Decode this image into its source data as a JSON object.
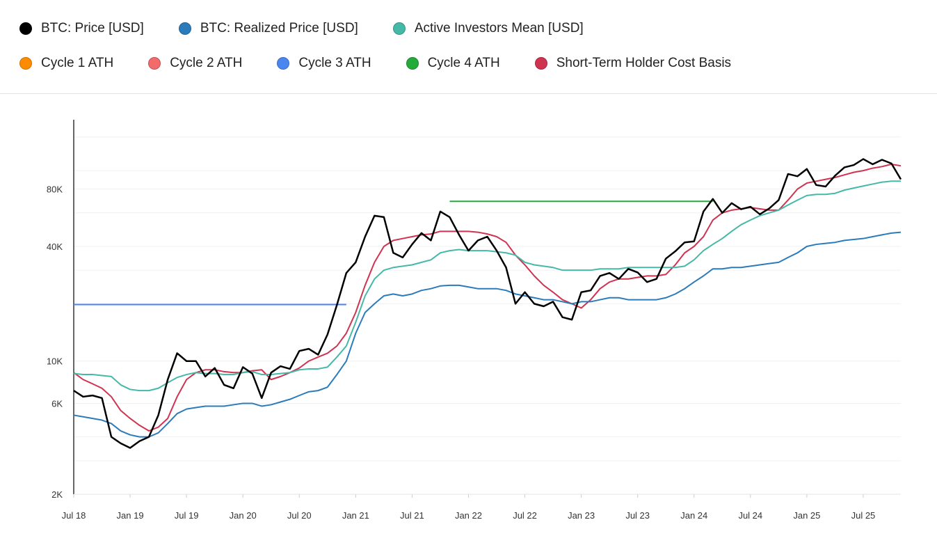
{
  "legend": [
    {
      "label": "BTC: Price [USD]",
      "color": "#000000"
    },
    {
      "label": "BTC: Realized Price [USD]",
      "color": "#2b7bba"
    },
    {
      "label": "Active Investors Mean [USD]",
      "color": "#45b8a8"
    },
    {
      "label": "Cycle 1 ATH",
      "color": "#ff8c00"
    },
    {
      "label": "Cycle 2 ATH",
      "color": "#f26a6a"
    },
    {
      "label": "Cycle 3 ATH",
      "color": "#4a86f0"
    },
    {
      "label": "Cycle 4 ATH",
      "color": "#22aa3a"
    },
    {
      "label": "Short-Term Holder Cost Basis",
      "color": "#d0334f"
    }
  ],
  "chart_data": {
    "type": "line",
    "yscale": "log",
    "ylim": [
      2000,
      185000
    ],
    "xlim": [
      "2018-07",
      "2025-11"
    ],
    "yticks": [
      {
        "v": 2000,
        "label": "2K"
      },
      {
        "v": 6000,
        "label": "6K"
      },
      {
        "v": 10000,
        "label": "10K"
      },
      {
        "v": 40000,
        "label": "40K"
      },
      {
        "v": 80000,
        "label": "80K"
      }
    ],
    "xticks": [
      {
        "v": "2018-07",
        "label": "Jul 18"
      },
      {
        "v": "2019-01",
        "label": "Jan 19"
      },
      {
        "v": "2019-07",
        "label": "Jul 19"
      },
      {
        "v": "2020-01",
        "label": "Jan 20"
      },
      {
        "v": "2020-07",
        "label": "Jul 20"
      },
      {
        "v": "2021-01",
        "label": "Jan 21"
      },
      {
        "v": "2021-07",
        "label": "Jul 21"
      },
      {
        "v": "2022-01",
        "label": "Jan 22"
      },
      {
        "v": "2022-07",
        "label": "Jul 22"
      },
      {
        "v": "2023-01",
        "label": "Jan 23"
      },
      {
        "v": "2023-07",
        "label": "Jul 23"
      },
      {
        "v": "2024-01",
        "label": "Jan 24"
      },
      {
        "v": "2024-07",
        "label": "Jul 24"
      },
      {
        "v": "2025-01",
        "label": "Jan 25"
      },
      {
        "v": "2025-07",
        "label": "Jul 25"
      }
    ],
    "grid": true,
    "start": "2018-07",
    "series": [
      {
        "name": "BTC: Price [USD]",
        "color": "#000000",
        "values": [
          7000,
          6500,
          6600,
          6400,
          4000,
          3700,
          3500,
          3800,
          4000,
          5200,
          8000,
          11000,
          10000,
          10000,
          8300,
          9200,
          7500,
          7200,
          9300,
          8600,
          6400,
          8700,
          9400,
          9100,
          11300,
          11600,
          10800,
          13800,
          19700,
          29000,
          33000,
          45000,
          58000,
          57000,
          37000,
          35000,
          41000,
          47000,
          43000,
          61000,
          57000,
          46000,
          38000,
          43000,
          45000,
          38000,
          31000,
          20000,
          23000,
          20000,
          19400,
          20500,
          17000,
          16500,
          23000,
          23500,
          28000,
          29000,
          27000,
          30500,
          29200,
          26000,
          27000,
          34500,
          37700,
          42000,
          42500,
          61000,
          71000,
          60000,
          67500,
          62700,
          64600,
          59000,
          63300,
          70000,
          96000,
          93400,
          102000,
          84000,
          82500,
          94000,
          104000,
          107000,
          115000,
          108000,
          114000,
          109000,
          90000
        ]
      },
      {
        "name": "BTC: Realized Price [USD]",
        "color": "#2b7bba",
        "values": [
          5200,
          5100,
          5000,
          4900,
          4700,
          4300,
          4100,
          4000,
          4000,
          4200,
          4700,
          5300,
          5600,
          5700,
          5800,
          5800,
          5800,
          5900,
          6000,
          6000,
          5800,
          5900,
          6100,
          6300,
          6600,
          6900,
          7000,
          7300,
          8500,
          10000,
          14000,
          18000,
          20000,
          22000,
          22500,
          22000,
          22500,
          23500,
          24000,
          24800,
          25000,
          25000,
          24500,
          24000,
          24000,
          24000,
          23500,
          22500,
          22000,
          21500,
          21000,
          21000,
          20500,
          20000,
          20500,
          20500,
          21000,
          21500,
          21500,
          21000,
          21000,
          21000,
          21000,
          21500,
          22500,
          24000,
          26000,
          28000,
          30500,
          30500,
          31000,
          31000,
          31500,
          32000,
          32500,
          33000,
          35000,
          37000,
          40000,
          41000,
          41500,
          42000,
          43000,
          43500,
          44000,
          45000,
          46000,
          47000,
          47500
        ]
      },
      {
        "name": "Active Investors Mean [USD]",
        "color": "#45b8a8",
        "values": [
          8600,
          8500,
          8500,
          8400,
          8300,
          7500,
          7100,
          7000,
          7000,
          7200,
          7700,
          8200,
          8500,
          8700,
          8600,
          8600,
          8500,
          8500,
          8700,
          8800,
          8500,
          8500,
          8600,
          8700,
          9000,
          9100,
          9100,
          9300,
          10500,
          12000,
          16000,
          22000,
          27000,
          30000,
          31000,
          31500,
          32000,
          33000,
          34000,
          37000,
          38000,
          38500,
          38000,
          38000,
          38000,
          37500,
          37000,
          36000,
          33000,
          32000,
          31500,
          31000,
          30000,
          30000,
          30000,
          30000,
          30500,
          30500,
          30500,
          31000,
          31000,
          31000,
          31000,
          31000,
          31000,
          31500,
          34000,
          38000,
          41000,
          44000,
          48000,
          52000,
          55000,
          58000,
          60000,
          62000,
          66000,
          70000,
          74000,
          75000,
          75000,
          76000,
          79000,
          81000,
          83000,
          85000,
          87000,
          88000,
          88000
        ]
      },
      {
        "name": "Short-Term Holder Cost Basis",
        "color": "#d0334f",
        "values": [
          8700,
          8000,
          7600,
          7200,
          6500,
          5500,
          5000,
          4600,
          4300,
          4500,
          5000,
          6500,
          8000,
          8700,
          9000,
          9000,
          8800,
          8700,
          8700,
          8900,
          9000,
          8000,
          8300,
          8700,
          9200,
          10000,
          10500,
          11000,
          12000,
          14000,
          18000,
          25000,
          33000,
          40000,
          43000,
          44000,
          45000,
          46000,
          46500,
          48000,
          48000,
          48000,
          48000,
          47500,
          46500,
          45000,
          42000,
          36000,
          32000,
          28000,
          25000,
          23000,
          21000,
          20000,
          19000,
          21000,
          24000,
          26000,
          27000,
          27000,
          27500,
          28000,
          28000,
          28500,
          32000,
          37000,
          40000,
          45000,
          55000,
          60000,
          62000,
          63000,
          64000,
          63000,
          62000,
          62000,
          70000,
          80000,
          86000,
          88000,
          90000,
          92000,
          95000,
          98000,
          100000,
          103000,
          105000,
          108000,
          106000
        ]
      },
      {
        "name": "Cycle 3 ATH",
        "color": "#4a86f0",
        "values": [
          19800
        ],
        "from": "2018-07",
        "to": "2020-12"
      },
      {
        "name": "Cycle 4 ATH",
        "color": "#22aa3a",
        "values": [
          69000
        ],
        "from": "2021-11",
        "to": "2024-03"
      }
    ]
  }
}
